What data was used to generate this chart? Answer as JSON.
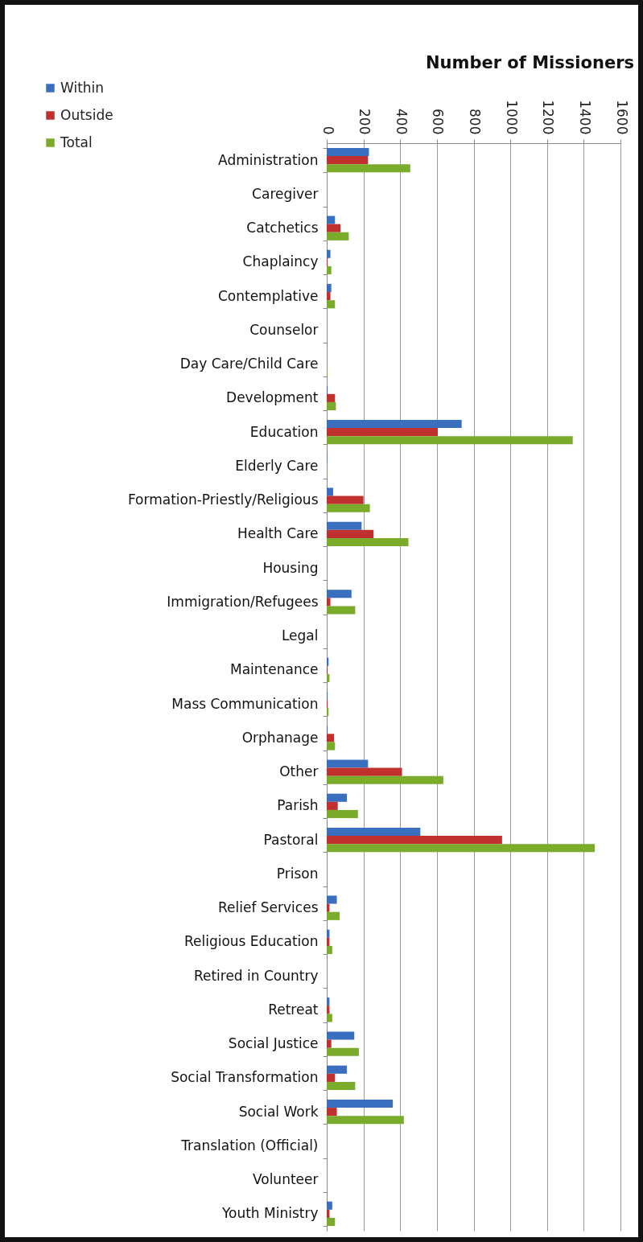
{
  "chart_data": {
    "type": "bar",
    "orientation": "horizontal",
    "title": "Number of Missioners",
    "categories": [
      "Administration",
      "Caregiver",
      "Catchetics",
      "Chaplaincy",
      "Contemplative",
      "Counselor",
      "Day Care/Child Care",
      "Development",
      "Education",
      "Elderly Care",
      "Formation-Priestly/Religious",
      "Health Care",
      "Housing",
      "Immigration/Refugees",
      "Legal",
      "Maintenance",
      "Mass Communication",
      "Orphanage",
      "Other",
      "Parish",
      "Pastoral",
      "Prison",
      "Relief Services",
      "Religious Education",
      "Retired in Country",
      "Retreat",
      "Social Justice",
      "Social Transformation",
      "Social Work",
      "Translation (Official)",
      "Volunteer",
      "Youth Ministry"
    ],
    "series": [
      {
        "name": "Within",
        "color": "#3a6fc0",
        "values": [
          230,
          0,
          45,
          20,
          25,
          0,
          null,
          5,
          735,
          3,
          35,
          190,
          0,
          135,
          0,
          10,
          5,
          5,
          225,
          110,
          510,
          0,
          55,
          15,
          0,
          15,
          150,
          110,
          360,
          0,
          0,
          30
        ]
      },
      {
        "name": "Outside",
        "color": "#c0302e",
        "values": [
          225,
          0,
          75,
          5,
          20,
          0,
          null,
          45,
          605,
          0,
          200,
          255,
          0,
          20,
          0,
          5,
          5,
          40,
          410,
          60,
          955,
          0,
          15,
          15,
          0,
          15,
          25,
          45,
          55,
          0,
          0,
          15
        ]
      },
      {
        "name": "Total",
        "color": "#7aab2a",
        "values": [
          455,
          0,
          120,
          25,
          45,
          0,
          4,
          50,
          1340,
          3,
          235,
          445,
          0,
          155,
          0,
          15,
          10,
          45,
          635,
          170,
          1460,
          0,
          70,
          30,
          0,
          30,
          175,
          155,
          420,
          0,
          0,
          45
        ]
      }
    ],
    "xlim": [
      0,
      1600
    ],
    "xticks": [
      0,
      200,
      400,
      600,
      800,
      1000,
      1200,
      1400,
      1600
    ],
    "grid": "x",
    "legend": "top left"
  }
}
